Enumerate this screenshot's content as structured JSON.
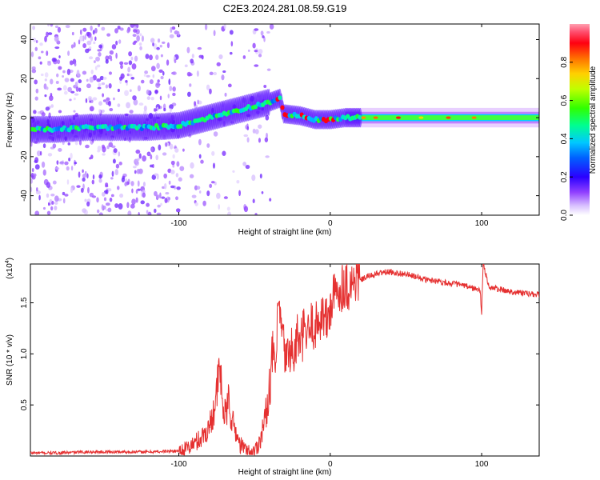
{
  "title": "C2E3.2024.281.08.59.G19",
  "colors": {
    "snr_line": "#e53030",
    "colormap": [
      "#ffffff",
      "#e8d8ff",
      "#b870ff",
      "#6a00ff",
      "#2020ff",
      "#00c8ff",
      "#00ff80",
      "#40ff00",
      "#ffff00",
      "#ff8000",
      "#ff0000",
      "#ff9090"
    ]
  },
  "chart_data": [
    {
      "type": "heatmap",
      "xlabel": "Height of straight line (km)",
      "ylabel": "Frequency (Hz)",
      "xlim": [
        -198,
        138
      ],
      "ylim": [
        -50,
        48
      ],
      "xticks": [
        {
          "v": -100,
          "label": "-100"
        },
        {
          "v": 0,
          "label": "0"
        },
        {
          "v": 100,
          "label": "100"
        }
      ],
      "yticks": [
        {
          "v": -40,
          "label": "-40"
        },
        {
          "v": -20,
          "label": "-20"
        },
        {
          "v": 0,
          "label": "0"
        },
        {
          "v": 20,
          "label": "20"
        },
        {
          "v": 40,
          "label": "40"
        }
      ],
      "colorbar": {
        "label": "Normalized spectral amplitude",
        "range": [
          0,
          1
        ],
        "ticks": [
          {
            "v": 0,
            "label": "0.0"
          },
          {
            "v": 0.2,
            "label": "0.2"
          },
          {
            "v": 0.4,
            "label": "0.4"
          },
          {
            "v": 0.6,
            "label": "0.6"
          },
          {
            "v": 0.8,
            "label": "0.8"
          }
        ]
      },
      "ridge": [
        {
          "x": -198,
          "y": -6
        },
        {
          "x": -180,
          "y": -6
        },
        {
          "x": -160,
          "y": -5
        },
        {
          "x": -140,
          "y": -5
        },
        {
          "x": -120,
          "y": -5
        },
        {
          "x": -100,
          "y": -4
        },
        {
          "x": -90,
          "y": -2
        },
        {
          "x": -80,
          "y": 0
        },
        {
          "x": -70,
          "y": 2
        },
        {
          "x": -60,
          "y": 4
        },
        {
          "x": -50,
          "y": 6
        },
        {
          "x": -40,
          "y": 8
        },
        {
          "x": -33,
          "y": 10
        },
        {
          "x": -31,
          "y": 2
        },
        {
          "x": -20,
          "y": 1
        },
        {
          "x": -10,
          "y": -1
        },
        {
          "x": 0,
          "y": -1
        },
        {
          "x": 10,
          "y": 0
        },
        {
          "x": 20,
          "y": 0
        },
        {
          "x": 60,
          "y": 0
        },
        {
          "x": 100,
          "y": 0
        },
        {
          "x": 138,
          "y": 0
        }
      ]
    },
    {
      "type": "line",
      "xlabel": "Height of straight line (km)",
      "ylabel": "SNR (10 * v/v)",
      "multiplier": "(x10",
      "multiplier_exp": "4",
      "multiplier_close": ")",
      "xlim": [
        -198,
        138
      ],
      "ylim": [
        0,
        1.88
      ],
      "xticks": [
        {
          "v": -100,
          "label": "-100"
        },
        {
          "v": 0,
          "label": "0"
        },
        {
          "v": 100,
          "label": "100"
        }
      ],
      "yticks": [
        {
          "v": 0.5,
          "label": "0.5"
        },
        {
          "v": 1.0,
          "label": "1.0"
        },
        {
          "v": 1.5,
          "label": "1.5"
        }
      ],
      "series": [
        {
          "x": [
            -198,
            -180,
            -160,
            -140,
            -120,
            -100,
            -95,
            -90,
            -85,
            -80,
            -77,
            -75,
            -73,
            -71,
            -69,
            -67,
            -65,
            -62,
            -60,
            -57,
            -55,
            -52,
            -50,
            -48,
            -46,
            -44,
            -42,
            -40,
            -38,
            -36,
            -34,
            -32,
            -30,
            -28,
            -26,
            -24,
            -22,
            -20,
            -17,
            -15,
            -12,
            -10,
            -7,
            -5,
            -2,
            0,
            2,
            5,
            7,
            10,
            12,
            15,
            18,
            20,
            25,
            30,
            35,
            40,
            45,
            50,
            55,
            60,
            65,
            70,
            75,
            80,
            85,
            90,
            95,
            99,
            100,
            101,
            105,
            110,
            115,
            120,
            125,
            130,
            135,
            138
          ],
          "values": [
            0.03,
            0.03,
            0.04,
            0.04,
            0.04,
            0.05,
            0.07,
            0.12,
            0.18,
            0.28,
            0.45,
            0.6,
            0.88,
            0.5,
            0.38,
            0.55,
            0.35,
            0.22,
            0.12,
            0.08,
            0.05,
            0.04,
            0.05,
            0.1,
            0.18,
            0.3,
            0.45,
            0.7,
            1.0,
            0.85,
            1.5,
            1.2,
            1.0,
            0.95,
            1.1,
            0.9,
            1.2,
            1.05,
            1.25,
            1.15,
            1.3,
            1.25,
            1.35,
            1.4,
            1.3,
            1.45,
            1.55,
            1.6,
            1.65,
            1.7,
            1.65,
            1.7,
            1.75,
            1.72,
            1.76,
            1.78,
            1.8,
            1.8,
            1.79,
            1.78,
            1.76,
            1.74,
            1.72,
            1.72,
            1.7,
            1.69,
            1.68,
            1.66,
            1.64,
            1.62,
            1.4,
            1.88,
            1.65,
            1.64,
            1.62,
            1.61,
            1.6,
            1.59,
            1.58,
            1.58
          ]
        }
      ]
    }
  ]
}
